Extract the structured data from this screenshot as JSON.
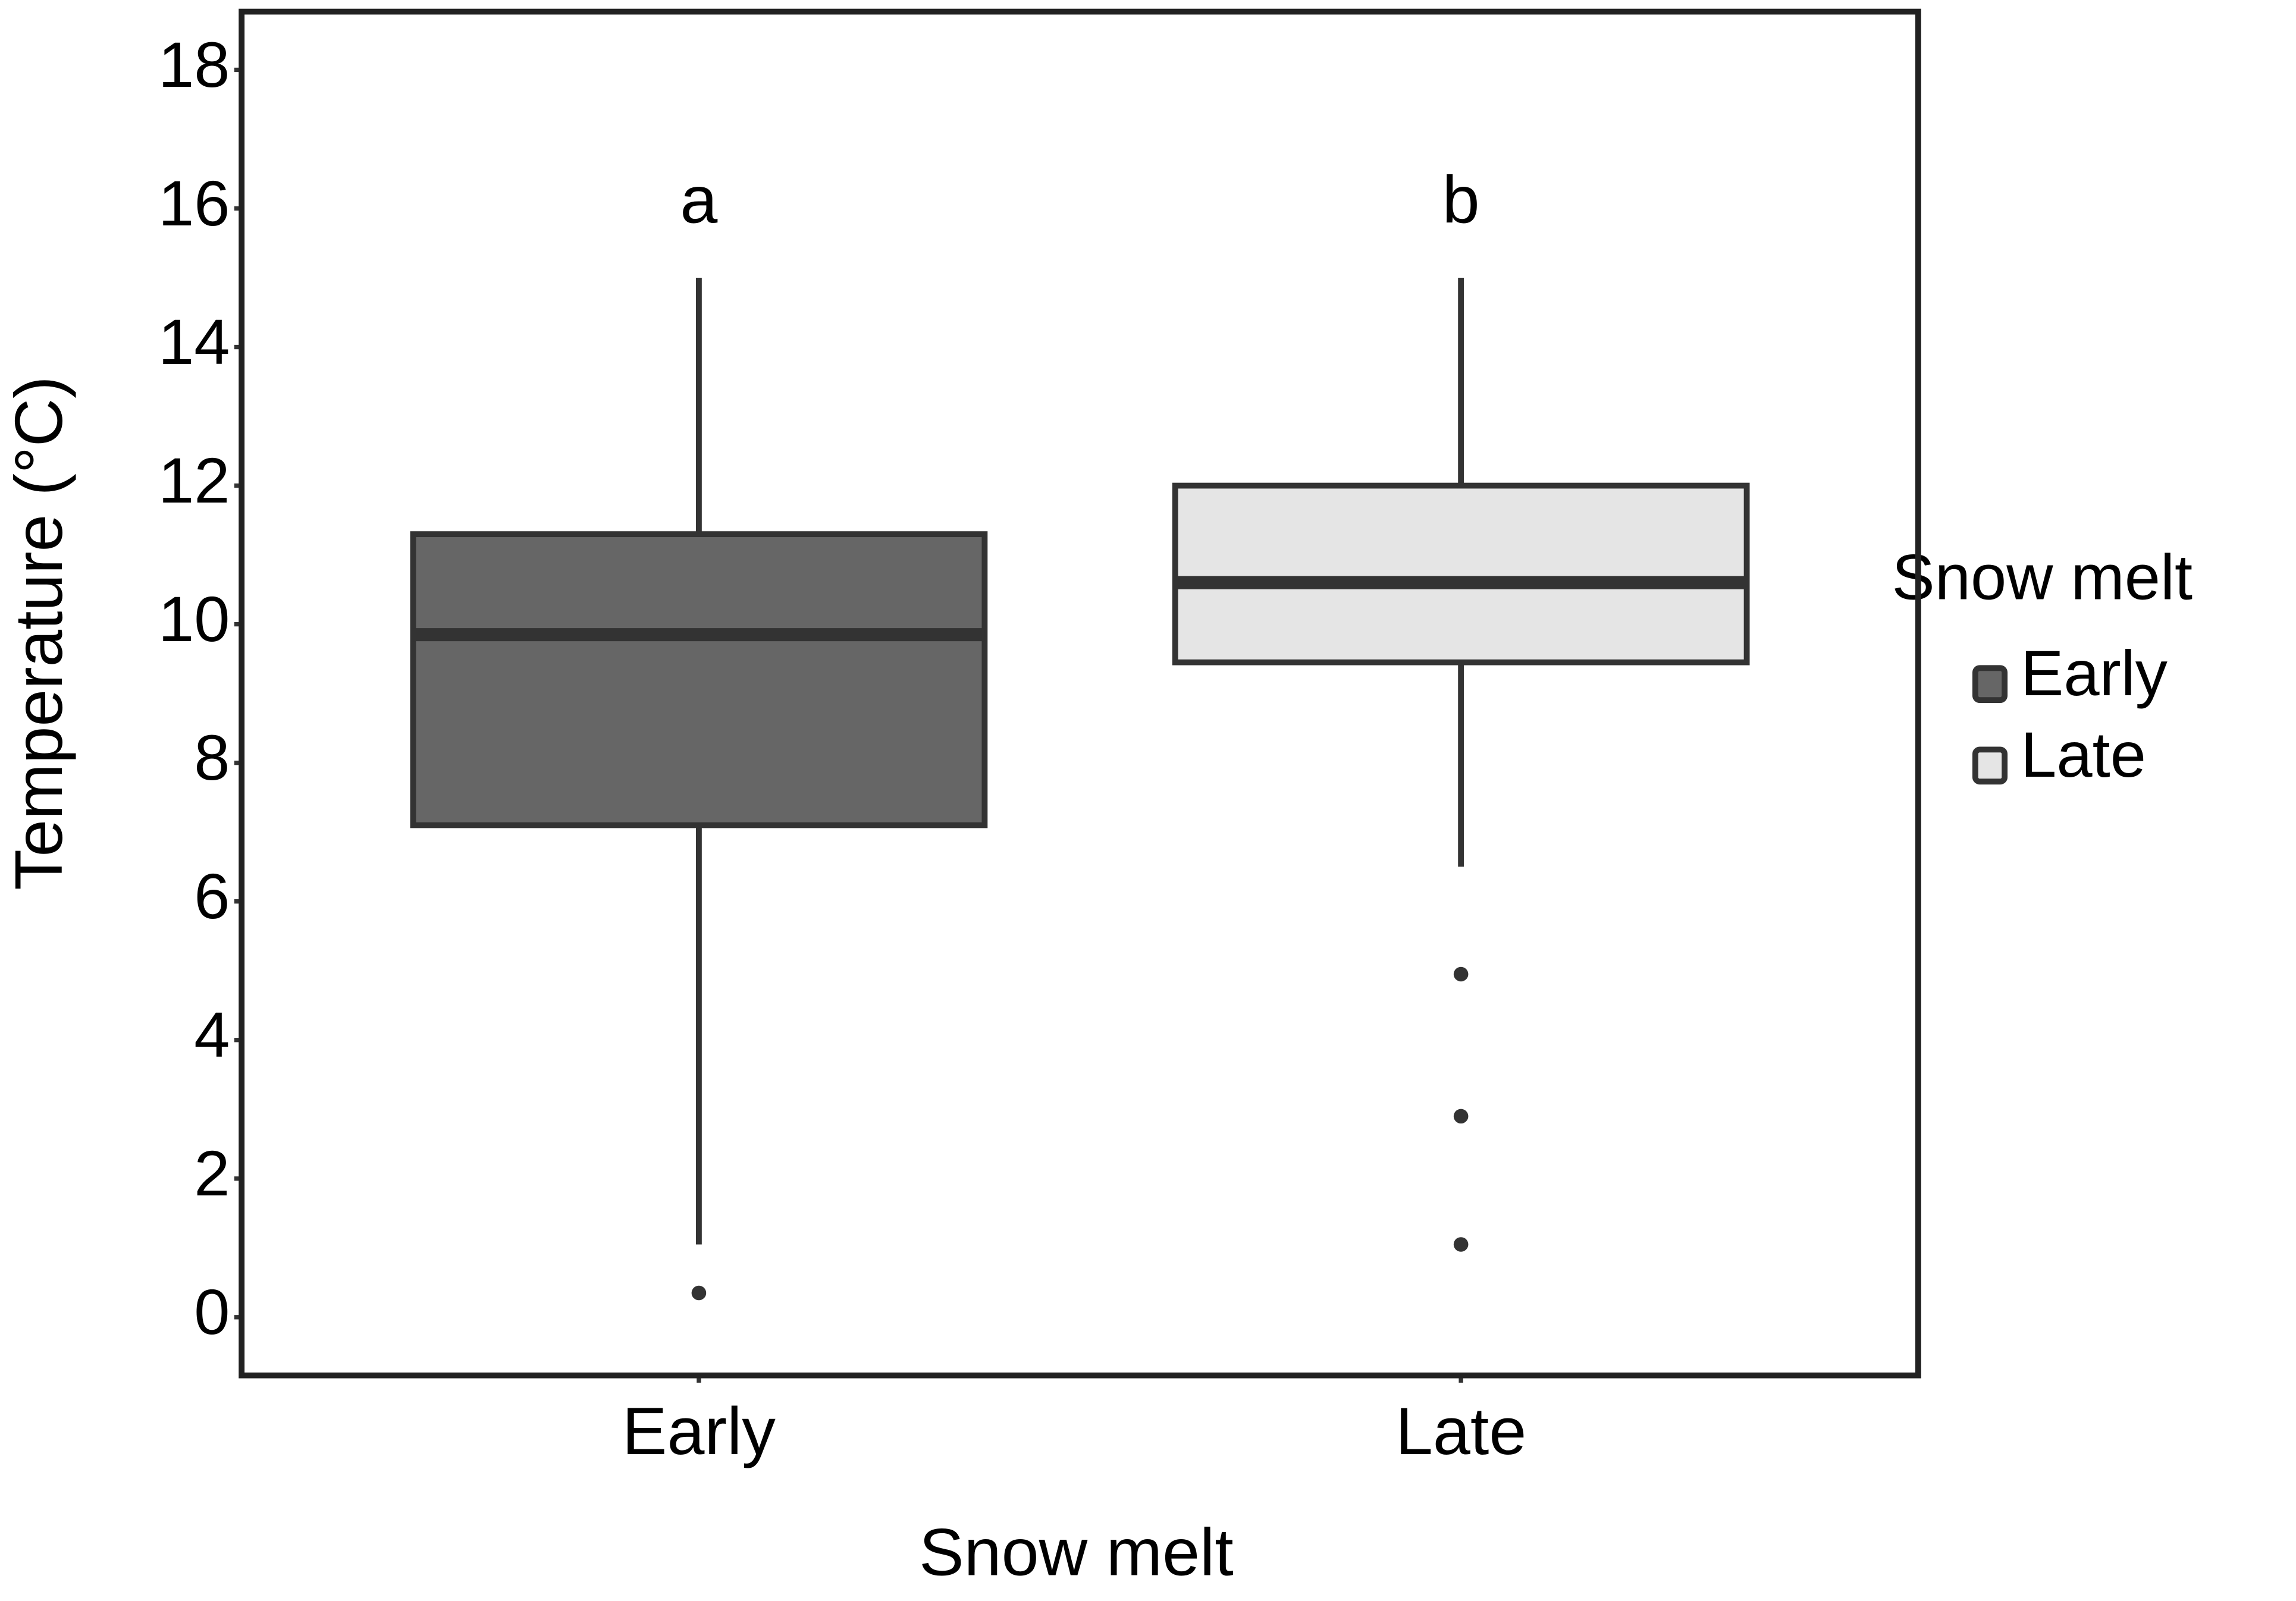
{
  "chart_data": {
    "type": "box",
    "x_label": "Snow melt",
    "y_label": "Temperature (°C)",
    "legend_title": "Snow melt",
    "legend_position": "right",
    "categories": [
      "Early",
      "Late"
    ],
    "annotations": [
      "a",
      "b"
    ],
    "series": [
      {
        "name": "Early",
        "color": "#666666",
        "whisker_low": 1.05,
        "q1": 7.1,
        "median": 9.85,
        "q3": 11.3,
        "whisker_high": 15,
        "outliers": [
          0.35
        ]
      },
      {
        "name": "Late",
        "color": "#e5e5e5",
        "whisker_low": 6.5,
        "q1": 9.45,
        "median": 10.6,
        "q3": 12,
        "whisker_high": 15,
        "outliers": [
          4.95,
          2.9,
          1.05
        ]
      }
    ],
    "ylim": [
      -0.84,
      18.84
    ],
    "yticks": [
      0,
      2,
      4,
      6,
      8,
      10,
      12,
      14,
      16,
      18
    ],
    "grid": false
  }
}
